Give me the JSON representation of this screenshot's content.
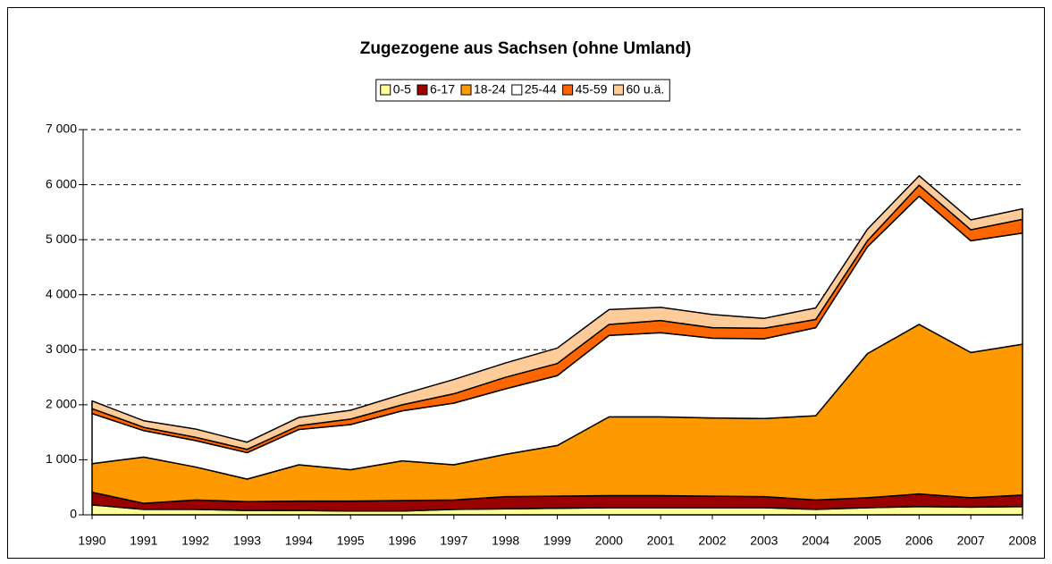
{
  "chart_data": {
    "type": "stacked_area",
    "title": "Zugezogene aus Sachsen (ohne Umland)",
    "categories": [
      "1990",
      "1991",
      "1992",
      "1993",
      "1994",
      "1995",
      "1996",
      "1997",
      "1998",
      "1999",
      "2000",
      "2001",
      "2002",
      "2003",
      "2004",
      "2005",
      "2006",
      "2007",
      "2008"
    ],
    "series": [
      {
        "name": "0-5",
        "color": "#ffff99",
        "values": [
          180,
          100,
          100,
          80,
          80,
          70,
          70,
          100,
          110,
          120,
          130,
          130,
          130,
          130,
          100,
          130,
          150,
          140,
          150
        ]
      },
      {
        "name": "6-17",
        "color": "#990000",
        "values": [
          230,
          110,
          170,
          160,
          170,
          180,
          190,
          170,
          220,
          220,
          220,
          220,
          210,
          200,
          170,
          180,
          230,
          170,
          210
        ]
      },
      {
        "name": "18-24",
        "color": "#ff9900",
        "values": [
          520,
          840,
          600,
          410,
          660,
          570,
          720,
          640,
          770,
          920,
          1430,
          1430,
          1420,
          1420,
          1530,
          2620,
          3080,
          2640,
          2740
        ]
      },
      {
        "name": "25-44",
        "color": "#ffffff",
        "values": [
          910,
          480,
          480,
          480,
          640,
          820,
          910,
          1120,
          1190,
          1270,
          1480,
          1530,
          1450,
          1450,
          1600,
          1940,
          2330,
          2030,
          2020
        ]
      },
      {
        "name": "45-59",
        "color": "#ff6600",
        "values": [
          90,
          60,
          60,
          60,
          70,
          100,
          110,
          170,
          210,
          220,
          200,
          220,
          190,
          190,
          150,
          110,
          200,
          200,
          250
        ]
      },
      {
        "name": "60 u.ä.",
        "color": "#ffcc99",
        "values": [
          140,
          120,
          150,
          130,
          150,
          160,
          190,
          260,
          260,
          280,
          270,
          240,
          240,
          180,
          210,
          210,
          170,
          180,
          190
        ]
      }
    ],
    "ylim": [
      0,
      7000
    ],
    "yticks": [
      0,
      {
        "value": 1000,
        "label": "1 000"
      },
      {
        "value": 2000,
        "label": "2 000"
      },
      {
        "value": 3000,
        "label": "3 000"
      },
      {
        "value": 4000,
        "label": "4 000"
      },
      {
        "value": 5000,
        "label": "5 000"
      },
      {
        "value": 6000,
        "label": "6 000"
      },
      {
        "value": 7000,
        "label": "7 000"
      }
    ],
    "grid": true,
    "legend": "top"
  }
}
